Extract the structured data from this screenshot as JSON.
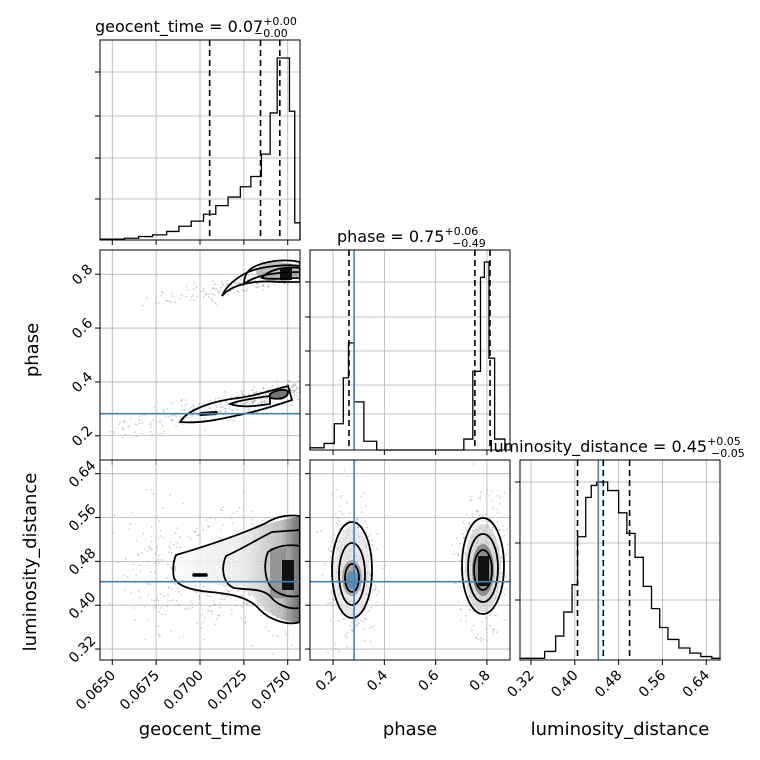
{
  "chart_data": {
    "type": "corner",
    "params": [
      {
        "name": "geocent_time",
        "range": [
          0.0643,
          0.0757
        ],
        "ticks": [
          "0.0650",
          "0.0675",
          "0.0700",
          "0.0725",
          "0.0750"
        ],
        "tick_values": [
          0.065,
          0.0675,
          0.07,
          0.0725,
          0.075
        ],
        "truth": null,
        "quantiles": [
          0.07055,
          0.07345,
          0.07455
        ],
        "title_value": "0.07",
        "title_plus": "+0.00",
        "title_minus": "−0.00"
      },
      {
        "name": "phase",
        "range": [
          0.11,
          0.89
        ],
        "ticks": [
          "0.2",
          "0.4",
          "0.6",
          "0.8"
        ],
        "tick_values": [
          0.2,
          0.4,
          0.6,
          0.8
        ],
        "truth": 0.282,
        "quantiles": [
          0.262,
          0.753,
          0.812
        ],
        "title_value": "0.75",
        "title_plus": "+0.06",
        "title_minus": "−0.49"
      },
      {
        "name": "luminosity_distance",
        "range": [
          0.3,
          0.665
        ],
        "ticks": [
          "0.32",
          "0.40",
          "0.48",
          "0.56",
          "0.64"
        ],
        "tick_values": [
          0.32,
          0.4,
          0.48,
          0.56,
          0.64
        ],
        "truth": 0.443,
        "quantiles": [
          0.405,
          0.452,
          0.5
        ],
        "title_value": "0.45",
        "title_plus": "+0.05",
        "title_minus": "−0.05"
      }
    ],
    "hist_geocent_time": {
      "edges": [
        0.0643,
        0.0657,
        0.0665,
        0.0673,
        0.0681,
        0.0688,
        0.0695,
        0.0702,
        0.0709,
        0.0716,
        0.0723,
        0.0729,
        0.0735,
        0.074,
        0.0744,
        0.0748,
        0.0751,
        0.0754,
        0.0757
      ],
      "counts": [
        0.5,
        1,
        2,
        3,
        5,
        8,
        11,
        15,
        20,
        25,
        31,
        37,
        50,
        74,
        106,
        106,
        75,
        10
      ]
    },
    "hist_phase": {
      "edges": [
        0.11,
        0.165,
        0.205,
        0.24,
        0.26,
        0.283,
        0.32,
        0.37,
        0.41,
        0.45,
        0.71,
        0.745,
        0.775,
        0.79,
        0.808,
        0.83,
        0.87
      ],
      "counts": [
        1,
        3,
        12,
        33,
        49,
        22,
        4,
        0,
        0,
        0,
        5,
        36,
        79,
        86,
        42,
        5
      ]
    },
    "hist_luminosity_distance": {
      "edges": [
        0.3,
        0.345,
        0.365,
        0.38,
        0.395,
        0.405,
        0.42,
        0.43,
        0.44,
        0.46,
        0.48,
        0.495,
        0.51,
        0.525,
        0.54,
        0.555,
        0.57,
        0.59,
        0.61,
        0.63,
        0.65,
        0.665
      ],
      "counts": [
        1,
        5,
        14,
        28,
        44,
        72,
        95,
        102,
        104,
        99,
        86,
        74,
        60,
        43,
        30,
        19,
        12,
        7,
        4,
        2,
        1
      ]
    }
  },
  "labels": {
    "title_geocent_time": "geocent_time = 0.07",
    "title_phase": "phase = 0.75",
    "title_luminosity_distance": "luminosity_distance = 0.45",
    "ylabel_phase": "phase",
    "ylabel_luminosity_distance": "luminosity_distance",
    "xlabel_geocent_time": "geocent_time",
    "xlabel_phase": "phase",
    "xlabel_luminosity_distance": "luminosity_distance"
  },
  "colors": {
    "truth": "#4682b4",
    "hist": "#000000",
    "grid": "#b0b0b0"
  }
}
